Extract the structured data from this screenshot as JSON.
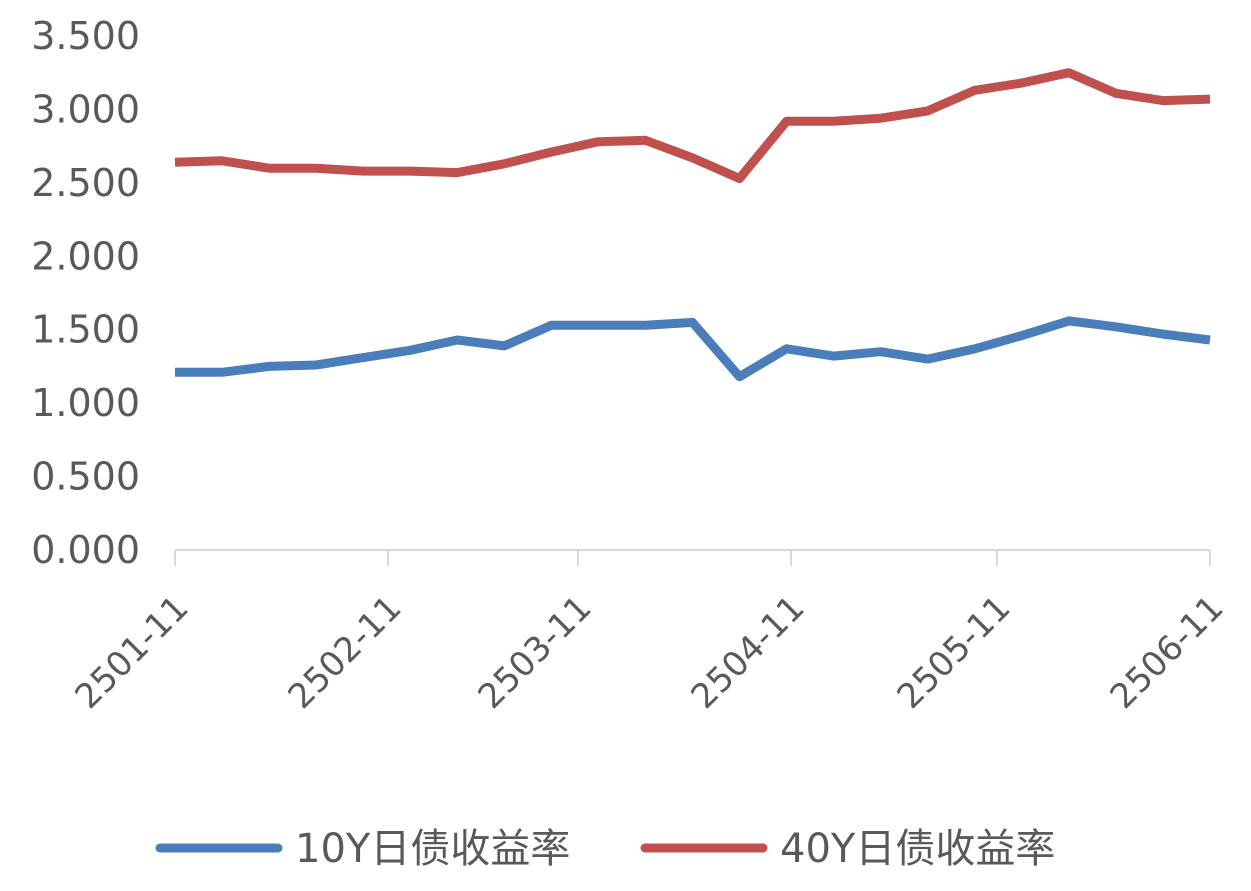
{
  "chart_data": {
    "type": "line",
    "title": "",
    "xlabel": "",
    "ylabel": "",
    "ylim": [
      0,
      3.5
    ],
    "y_ticks": [
      "0.000",
      "0.500",
      "1.000",
      "1.500",
      "2.000",
      "2.500",
      "3.000",
      "3.500"
    ],
    "x_tick_labels": [
      "2501-11",
      "2502-11",
      "2503-11",
      "2504-11",
      "2505-11",
      "2506-11"
    ],
    "grid": false,
    "legend_position": "bottom",
    "series": [
      {
        "name": "10Y日债收益率",
        "color": "#4a7ebb",
        "values": [
          1.21,
          1.21,
          1.25,
          1.26,
          1.31,
          1.36,
          1.43,
          1.39,
          1.53,
          1.53,
          1.53,
          1.55,
          1.18,
          1.37,
          1.32,
          1.35,
          1.3,
          1.37,
          1.46,
          1.56,
          1.52,
          1.47,
          1.43
        ]
      },
      {
        "name": "40Y日债收益率",
        "color": "#c0504d",
        "values": [
          2.64,
          2.65,
          2.6,
          2.6,
          2.58,
          2.58,
          2.57,
          2.63,
          2.71,
          2.78,
          2.79,
          2.67,
          2.53,
          2.92,
          2.92,
          2.94,
          2.99,
          3.13,
          3.18,
          3.25,
          3.11,
          3.06,
          3.07
        ]
      }
    ]
  }
}
